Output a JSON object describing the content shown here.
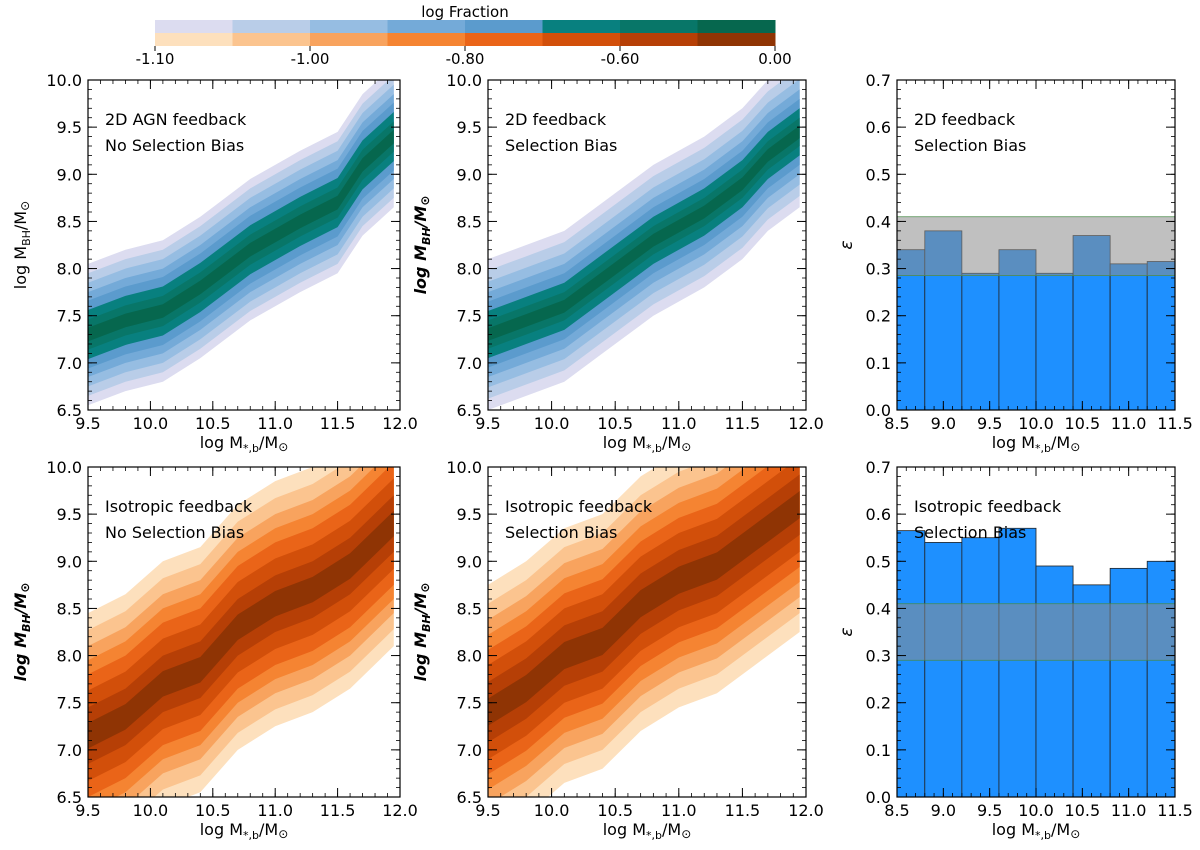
{
  "colorbar": {
    "title": "log Fraction",
    "tick_labels": [
      "-1.10",
      "-1.00",
      "-0.80",
      "-0.60",
      "0.00"
    ],
    "blue_colors": [
      "#dcdcf0",
      "#b9cde8",
      "#96bde2",
      "#74aad8",
      "#5b9bcd",
      "#08807f",
      "#087668",
      "#06674e"
    ],
    "orange_colors": [
      "#fde0bd",
      "#fbc48f",
      "#f8a35e",
      "#f58432",
      "#ea6418",
      "#d24f0a",
      "#b63f06",
      "#8f3404"
    ]
  },
  "chart_data": [
    {
      "type": "contour",
      "palette": "blue",
      "annotation": [
        "2D AGN feedback",
        "No Selection Bias"
      ],
      "xlabel": "log M*,b/M⊙",
      "ylabel": "log MBH/M⊙",
      "ylabel_style": "normal",
      "xlim": [
        9.5,
        12.0
      ],
      "ylim": [
        6.5,
        10.0
      ],
      "xticks": [
        "9.5",
        "10.0",
        "10.5",
        "11.0",
        "11.5",
        "12.0"
      ],
      "yticks": [
        "6.5",
        "7.0",
        "7.5",
        "8.0",
        "8.5",
        "9.0",
        "9.5",
        "10.0"
      ],
      "ridge": [
        [
          9.5,
          7.3
        ],
        [
          9.8,
          7.45
        ],
        [
          10.1,
          7.55
        ],
        [
          10.4,
          7.8
        ],
        [
          10.8,
          8.2
        ],
        [
          11.2,
          8.5
        ],
        [
          11.5,
          8.7
        ],
        [
          11.7,
          9.1
        ],
        [
          11.95,
          9.4
        ]
      ],
      "widths": [
        0.75,
        0.65,
        0.55,
        0.45,
        0.36,
        0.26,
        0.16
      ],
      "level_indices": [
        0,
        1,
        2,
        3,
        4,
        5,
        6,
        7
      ]
    },
    {
      "type": "contour",
      "palette": "blue",
      "annotation": [
        "2D feedback",
        "Selection Bias"
      ],
      "xlabel": "log M*,b/M⊙",
      "ylabel": "log MBH/M⊙",
      "ylabel_style": "italic-bold",
      "xlim": [
        9.5,
        12.0
      ],
      "ylim": [
        6.5,
        10.0
      ],
      "xticks": [
        "9.5",
        "10.0",
        "10.5",
        "11.0",
        "11.5",
        "12.0"
      ],
      "yticks": [
        "6.5",
        "7.0",
        "7.5",
        "8.0",
        "8.5",
        "9.0",
        "9.5",
        "10.0"
      ],
      "ridge": [
        [
          9.5,
          7.3
        ],
        [
          9.8,
          7.45
        ],
        [
          10.1,
          7.6
        ],
        [
          10.4,
          7.9
        ],
        [
          10.8,
          8.3
        ],
        [
          11.2,
          8.6
        ],
        [
          11.5,
          8.9
        ],
        [
          11.7,
          9.2
        ],
        [
          11.95,
          9.45
        ]
      ],
      "widths": [
        0.8,
        0.68,
        0.56,
        0.45,
        0.35,
        0.25,
        0.15
      ],
      "level_indices": [
        0,
        1,
        2,
        3,
        4,
        5,
        6,
        7
      ]
    },
    {
      "type": "bar",
      "mode": "overlay",
      "annotation": [
        "2D feedback",
        "Selection Bias"
      ],
      "xlabel": "log M*,b/M⊙",
      "ylabel": "ε",
      "xlim": [
        8.5,
        11.5
      ],
      "ylim": [
        0.0,
        0.7
      ],
      "xticks": [
        "8.5",
        "9.0",
        "9.5",
        "10.0",
        "10.5",
        "11.0",
        "11.5"
      ],
      "yticks": [
        "0.0",
        "0.1",
        "0.2",
        "0.3",
        "0.4",
        "0.5",
        "0.6",
        "0.7"
      ],
      "band": [
        0.285,
        0.41
      ],
      "bin_edges": [
        8.5,
        8.8,
        9.2,
        9.6,
        10.0,
        10.4,
        10.8,
        11.2,
        11.5
      ],
      "values": [
        0.34,
        0.38,
        0.29,
        0.34,
        0.29,
        0.37,
        0.31,
        0.315
      ],
      "bar_color": "#1e90ff",
      "band_color": "#8c8c8c"
    },
    {
      "type": "contour",
      "palette": "orange",
      "annotation": [
        "Isotropic feedback",
        "No Selection Bias"
      ],
      "xlabel": "log M*,b/M⊙",
      "ylabel": "log MBH/M⊙",
      "ylabel_style": "italic-bold",
      "xlim": [
        9.5,
        12.0
      ],
      "ylim": [
        6.5,
        10.0
      ],
      "xticks": [
        "9.5",
        "10.0",
        "10.5",
        "11.0",
        "11.5",
        "12.0"
      ],
      "yticks": [
        "6.5",
        "7.0",
        "7.5",
        "8.0",
        "8.5",
        "9.0",
        "9.5",
        "10.0"
      ],
      "ridge": [
        [
          9.5,
          7.15
        ],
        [
          9.8,
          7.35
        ],
        [
          10.1,
          7.7
        ],
        [
          10.4,
          7.85
        ],
        [
          10.7,
          8.3
        ],
        [
          11.0,
          8.55
        ],
        [
          11.3,
          8.7
        ],
        [
          11.6,
          8.95
        ],
        [
          11.95,
          9.4
        ]
      ],
      "widths": [
        1.3,
        1.12,
        0.95,
        0.8,
        0.65,
        0.48,
        0.3
      ],
      "level_indices": [
        0,
        1,
        2,
        3,
        4,
        5,
        6,
        7
      ]
    },
    {
      "type": "contour",
      "palette": "orange",
      "annotation": [
        "Isotropic feedback",
        "Selection Bias"
      ],
      "xlabel": "log M*,b/M⊙",
      "ylabel": "log MBH/M⊙",
      "ylabel_style": "italic-bold",
      "xlim": [
        9.5,
        12.0
      ],
      "ylim": [
        6.5,
        10.0
      ],
      "xticks": [
        "9.5",
        "10.0",
        "10.5",
        "11.0",
        "11.5",
        "12.0"
      ],
      "yticks": [
        "6.5",
        "7.0",
        "7.5",
        "8.0",
        "8.5",
        "9.0",
        "9.5",
        "10.0"
      ],
      "ridge": [
        [
          9.5,
          7.4
        ],
        [
          9.8,
          7.65
        ],
        [
          10.1,
          8.0
        ],
        [
          10.4,
          8.15
        ],
        [
          10.7,
          8.55
        ],
        [
          11.0,
          8.8
        ],
        [
          11.3,
          8.95
        ],
        [
          11.6,
          9.25
        ],
        [
          11.95,
          9.6
        ]
      ],
      "widths": [
        1.35,
        1.15,
        0.98,
        0.82,
        0.66,
        0.5,
        0.32
      ],
      "level_indices": [
        0,
        1,
        2,
        3,
        4,
        5,
        6,
        7
      ]
    },
    {
      "type": "bar",
      "mode": "overlay",
      "annotation": [
        "Isotropic feedback",
        "Selection Bias"
      ],
      "xlabel": "log M*,b/M⊙",
      "ylabel": "ε",
      "xlim": [
        8.5,
        11.5
      ],
      "ylim": [
        0.0,
        0.7
      ],
      "xticks": [
        "8.5",
        "9.0",
        "9.5",
        "10.0",
        "10.5",
        "11.0",
        "11.5"
      ],
      "yticks": [
        "0.0",
        "0.1",
        "0.2",
        "0.3",
        "0.4",
        "0.5",
        "0.6",
        "0.7"
      ],
      "band": [
        0.29,
        0.41
      ],
      "bin_edges": [
        8.5,
        8.8,
        9.2,
        9.6,
        10.0,
        10.4,
        10.8,
        11.2,
        11.5
      ],
      "values": [
        0.565,
        0.54,
        0.55,
        0.57,
        0.49,
        0.45,
        0.485,
        0.5
      ],
      "bar_color": "#1e90ff",
      "band_color": "#8c8c8c"
    }
  ]
}
